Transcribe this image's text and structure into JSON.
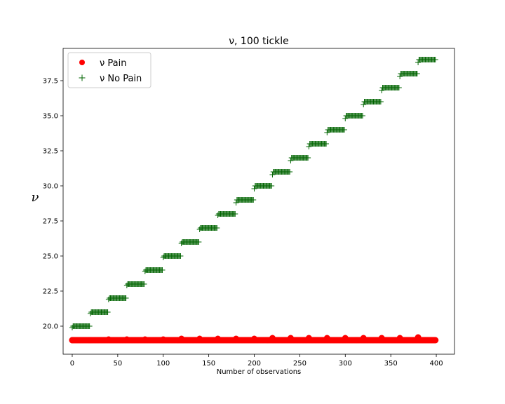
{
  "chart_data": {
    "type": "scatter",
    "title": "ν, 100 tickle",
    "xlabel": "Number of observations",
    "ylabel": "ν",
    "xlim": [
      -10,
      420
    ],
    "ylim": [
      18.0,
      39.8
    ],
    "x_ticks": [
      0,
      50,
      100,
      150,
      200,
      250,
      300,
      350,
      400
    ],
    "y_ticks": [
      20.0,
      22.5,
      25.0,
      27.5,
      30.0,
      32.5,
      35.0,
      37.5
    ],
    "x_tick_labels": [
      "0",
      "50",
      "100",
      "150",
      "200",
      "250",
      "300",
      "350",
      "400"
    ],
    "y_tick_labels": [
      "20.0",
      "22.5",
      "25.0",
      "27.5",
      "30.0",
      "32.5",
      "35.0",
      "37.5"
    ],
    "legend_position": "upper-left",
    "grid": false,
    "series": [
      {
        "name": "ν Pain",
        "marker": "circle",
        "color": "#ff0000",
        "x_range": [
          0,
          400
        ],
        "y_value": 19.0,
        "blocks": 20,
        "block_size": 20,
        "block_start_y_values": [
          19.0,
          19.0,
          19.05,
          19.05,
          19.05,
          19.05,
          19.1,
          19.1,
          19.1,
          19.1,
          19.1,
          19.15,
          19.15,
          19.15,
          19.15,
          19.15,
          19.15,
          19.15,
          19.15,
          19.2
        ]
      },
      {
        "name": "ν No Pain",
        "marker": "plus",
        "color": "#006400",
        "blocks": 20,
        "block_size": 20,
        "block_start_y_values": [
          19.9,
          20.9,
          21.9,
          22.9,
          23.9,
          24.9,
          25.9,
          26.9,
          27.9,
          28.8,
          29.8,
          30.8,
          31.8,
          32.8,
          33.8,
          34.8,
          35.8,
          36.8,
          37.8,
          38.8
        ],
        "block_y_values": [
          20.0,
          21.0,
          22.0,
          23.0,
          24.0,
          25.0,
          26.0,
          27.0,
          28.0,
          29.0,
          30.0,
          31.0,
          32.0,
          33.0,
          34.0,
          35.0,
          36.0,
          37.0,
          38.0,
          39.0
        ]
      }
    ]
  }
}
